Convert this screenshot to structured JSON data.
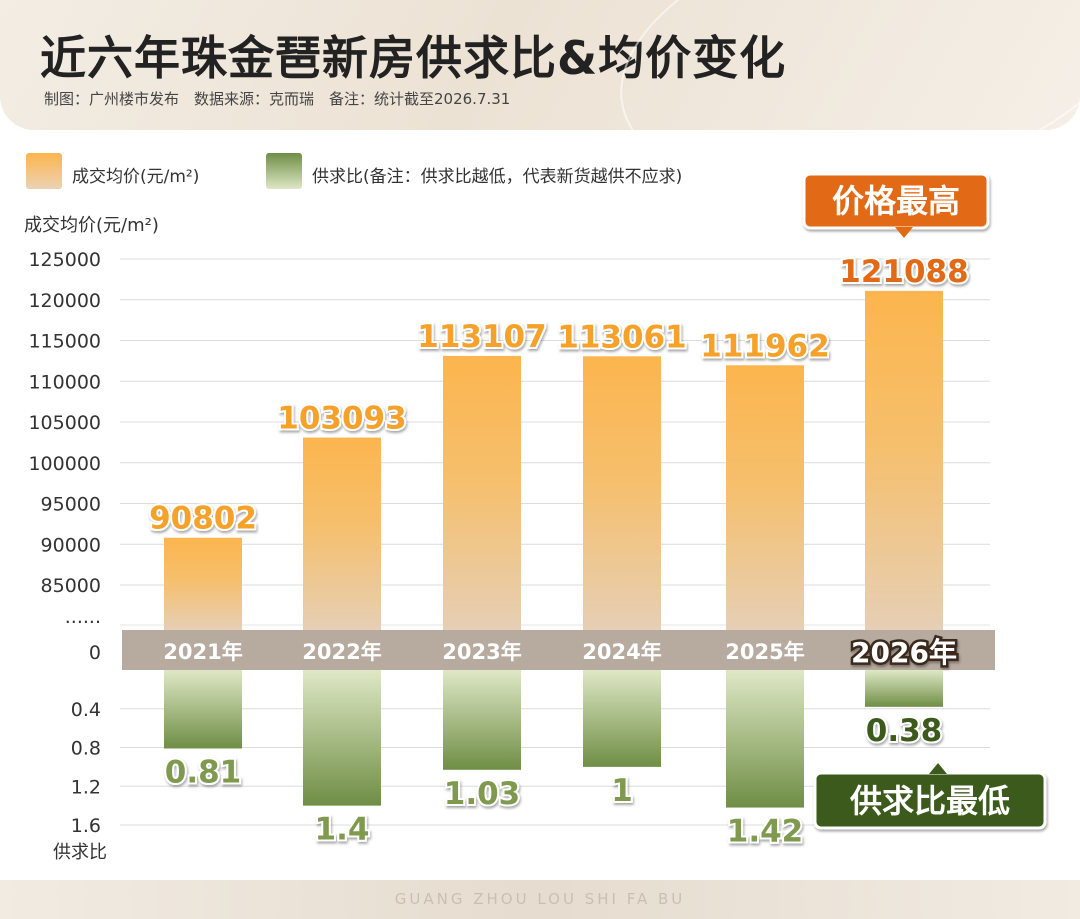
{
  "header": {
    "title": "近六年珠金琶新房供求比&均价变化",
    "subtitle": "制图：广州楼市发布　数据来源：克而瑞　备注：统计截至2026.7.31"
  },
  "legend": {
    "price_label": "成交均价(元/m²)",
    "ratio_label": "供求比(备注：供求比越低，代表新货越供不应求)"
  },
  "axis": {
    "price_title": "成交均价(元/m²)",
    "ratio_title": "供求比",
    "price_ticks": [
      "125000",
      "120000",
      "115000",
      "110000",
      "105000",
      "100000",
      "95000",
      "90000",
      "85000",
      "......"
    ],
    "zero_label": "0",
    "ratio_ticks": [
      "0.4",
      "0.8",
      "1.2",
      "1.6"
    ]
  },
  "callouts": {
    "price_high": "价格最高",
    "ratio_low": "供求比最低"
  },
  "footer": {
    "text": "GUANG ZHOU LOU SHI FA BU"
  },
  "colors": {
    "price_bar_top": "#fcb54e",
    "price_bar_bottom": "#e6cfb5",
    "ratio_bar_top": "#dfe8c6",
    "ratio_bar_bottom": "#6f8e45",
    "price_label": "#f5a12a",
    "ratio_label": "#7f9a4f",
    "highlight_price": "#e26a12",
    "highlight_ratio": "#3b5a1c",
    "band": "#b7aba0"
  },
  "chart_data": {
    "type": "bar",
    "categories": [
      "2021年",
      "2022年",
      "2023年",
      "2024年",
      "2025年",
      "2026年"
    ],
    "series": [
      {
        "name": "成交均价(元/m²)",
        "values": [
          90802,
          103093,
          113107,
          113061,
          111962,
          121088
        ],
        "labels": [
          "90802",
          "103093",
          "113107",
          "113061",
          "111962",
          "121088"
        ]
      },
      {
        "name": "供求比",
        "values": [
          0.81,
          1.4,
          1.03,
          1,
          1.42,
          0.38
        ],
        "labels": [
          "0.81",
          "1.4",
          "1.03",
          "1",
          "1.42",
          "0.38"
        ]
      }
    ],
    "price_axis": {
      "ticks": [
        125000,
        120000,
        115000,
        110000,
        105000,
        100000,
        95000,
        90000,
        85000
      ],
      "broken": true
    },
    "ratio_axis": {
      "range": [
        0,
        1.6
      ],
      "ticks": [
        0.4,
        0.8,
        1.2,
        1.6
      ],
      "inverted": true
    },
    "grid": true,
    "legend": "top-left",
    "highlight_index": 5
  }
}
